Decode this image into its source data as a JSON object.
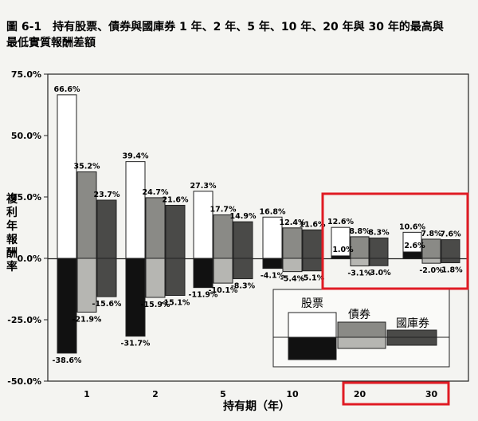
{
  "figure": {
    "title_line1": "圖 6-1　持有股票、債券與國庫券 1 年、2 年、5 年、10 年、20 年與 30 年的最高與",
    "title_line2": "最低實質報酬差額"
  },
  "chart_data": {
    "type": "bar",
    "categories": [
      "1",
      "2",
      "5",
      "10",
      "20",
      "30"
    ],
    "series": [
      {
        "name": "股票",
        "max": [
          66.6,
          39.4,
          27.3,
          16.8,
          12.6,
          10.6
        ],
        "min": [
          -38.6,
          -31.7,
          -11.9,
          -4.1,
          1.0,
          2.6
        ]
      },
      {
        "name": "債券",
        "max": [
          35.2,
          24.7,
          17.7,
          12.4,
          8.8,
          7.8
        ],
        "min": [
          -21.9,
          -15.9,
          -10.1,
          -5.4,
          -3.1,
          -2.0
        ]
      },
      {
        "name": "國庫券",
        "max": [
          23.7,
          21.6,
          14.9,
          11.6,
          8.3,
          7.6
        ],
        "min": [
          -15.6,
          -15.1,
          -8.3,
          -5.1,
          -3.0,
          -1.8
        ]
      }
    ],
    "max_labels": [
      [
        "66.6%",
        "39.4%",
        "27.3%",
        "16.8%",
        "12.6%",
        "10.6%"
      ],
      [
        "35.2%",
        "24.7%",
        "17.7%",
        "12.4%",
        "8.8%",
        "7.8%"
      ],
      [
        "23.7%",
        "21.6%",
        "14.9%",
        "11.6%",
        "8.3%",
        "7.6%"
      ]
    ],
    "min_labels": [
      [
        "-38.6%",
        "-31.7%",
        "-11.9%",
        "-4.1%",
        "1.0%",
        "2.6%"
      ],
      [
        "-21.9%",
        "-15.9%",
        "-10.1%",
        "-5.4%",
        "-3.1%",
        "-2.0%"
      ],
      [
        "-15.6%",
        "-15.1%",
        "-8.3%",
        "-5.1%",
        "-3.0%",
        "-1.8%"
      ]
    ],
    "yticks": [
      "75.0%",
      "50.0%",
      "25.0%",
      "0.0%",
      "-25.0%",
      "-50.0%"
    ],
    "ylabel": "複利年報酬率",
    "xlabel": "持有期（年）",
    "ylim": [
      -50,
      75
    ],
    "legend_position": "bottom-right",
    "highlighted_categories": [
      "20",
      "30"
    ],
    "highlight_color": "#e01b24",
    "colors": {
      "股票_max": "#ffffff",
      "股票_min": "#111111",
      "債券": "#8a8a86",
      "國庫券": "#4a4a48"
    }
  }
}
